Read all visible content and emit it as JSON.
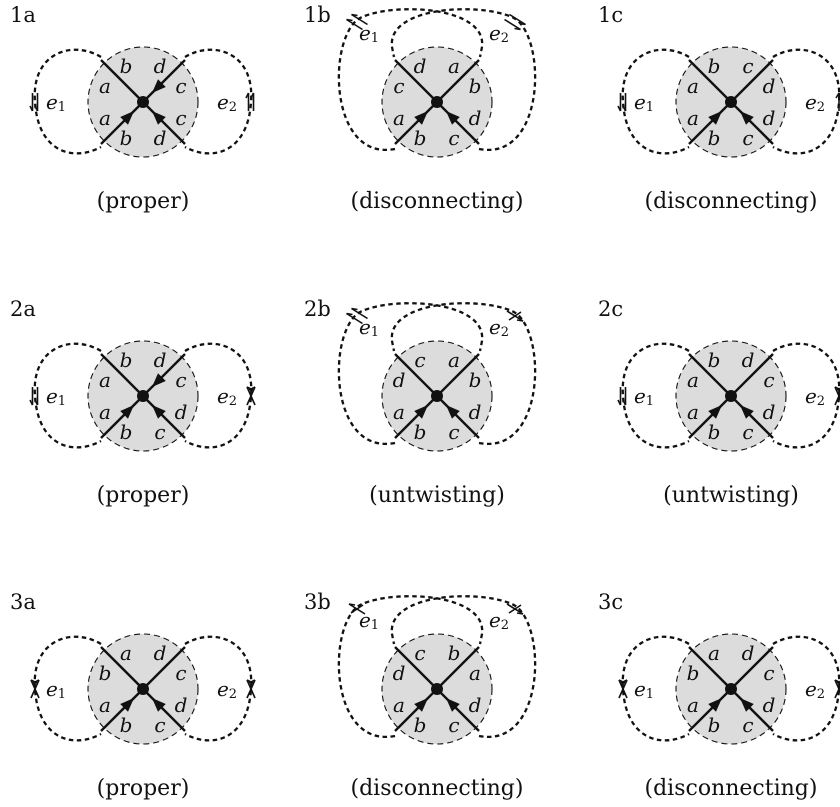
{
  "figure": {
    "edge_labels": [
      "e",
      "e"
    ],
    "edge_subscripts": [
      "1",
      "2"
    ],
    "panels": [
      {
        "id": "1a",
        "caption": "(proper)",
        "inner_quad": [
          "b",
          "d",
          "c",
          "d",
          "b",
          "a",
          "a"
        ],
        "lines": [
          "b",
          "d",
          "a",
          "c",
          "a",
          "c",
          "b",
          "d"
        ],
        "letters": [
          "b",
          "d",
          "a",
          "c",
          "a",
          "c",
          "b",
          "d"
        ],
        "left_arrow": "double-down",
        "right_arrow": "double-up",
        "top_arrow_left": "",
        "top_arrow_right": ""
      },
      {
        "id": "1b",
        "caption": "(disconnecting)",
        "letters": [
          "d",
          "a",
          "c",
          "b",
          "a",
          "d",
          "b",
          "c"
        ],
        "left_arrow": "double-nw",
        "right_arrow": "double-se",
        "top_arrow_left": "",
        "top_arrow_right": ""
      },
      {
        "id": "1c",
        "caption": "(disconnecting)",
        "letters": [
          "b",
          "c",
          "a",
          "d",
          "a",
          "d",
          "b",
          "c"
        ],
        "left_arrow": "double-down",
        "right_arrow": "single-up",
        "top_arrow_left": "",
        "top_arrow_right": ""
      },
      {
        "id": "2a",
        "caption": "(proper)",
        "letters": [
          "b",
          "d",
          "a",
          "c",
          "a",
          "d",
          "b",
          "c"
        ],
        "left_arrow": "double-down",
        "right_arrow": "cross",
        "top_arrow_left": "",
        "top_arrow_right": ""
      },
      {
        "id": "2b",
        "caption": "(untwisting)",
        "letters": [
          "c",
          "a",
          "d",
          "b",
          "a",
          "d",
          "b",
          "c"
        ],
        "left_arrow": "double-nw",
        "right_arrow": "cross-se",
        "top_arrow_left": "",
        "top_arrow_right": ""
      },
      {
        "id": "2c",
        "caption": "(untwisting)",
        "letters": [
          "b",
          "d",
          "a",
          "c",
          "a",
          "d",
          "b",
          "c"
        ],
        "left_arrow": "double-down",
        "right_arrow": "cross",
        "top_arrow_left": "",
        "top_arrow_right": ""
      },
      {
        "id": "3a",
        "caption": "(proper)",
        "letters": [
          "a",
          "d",
          "b",
          "c",
          "a",
          "d",
          "b",
          "c"
        ],
        "left_arrow": "cross",
        "right_arrow": "cross",
        "top_arrow_left": "",
        "top_arrow_right": ""
      },
      {
        "id": "3b",
        "caption": "(disconnecting)",
        "letters": [
          "c",
          "b",
          "d",
          "a",
          "a",
          "d",
          "b",
          "c"
        ],
        "left_arrow": "cross-nw",
        "right_arrow": "cross-se",
        "top_arrow_left": "",
        "top_arrow_right": ""
      },
      {
        "id": "3c",
        "caption": "(disconnecting)",
        "letters": [
          "a",
          "d",
          "b",
          "c",
          "a",
          "d",
          "b",
          "c"
        ],
        "left_arrow": "cross",
        "right_arrow": "cross",
        "top_arrow_left": "",
        "top_arrow_right": ""
      }
    ]
  }
}
